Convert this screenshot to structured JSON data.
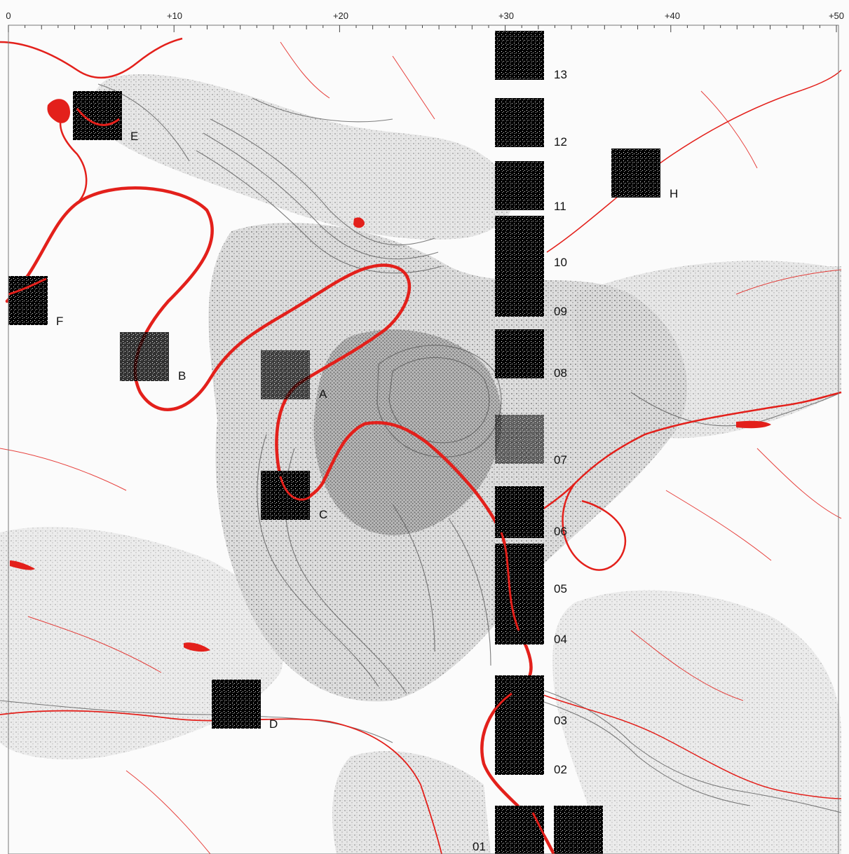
{
  "scale": {
    "labels": [
      "0",
      "+10",
      "+20",
      "+30",
      "+40",
      "+50"
    ]
  },
  "tiles": {
    "strip": [
      "13",
      "12",
      "11",
      "10",
      "09",
      "08",
      "07",
      "06",
      "05",
      "04",
      "03",
      "02",
      "01"
    ],
    "sites": [
      "A",
      "B",
      "C",
      "D",
      "E",
      "F",
      "H"
    ]
  },
  "colors": {
    "water": "#e3201b",
    "urban": "#9a9a9a",
    "contour": "#555555",
    "tile": "#000000"
  }
}
